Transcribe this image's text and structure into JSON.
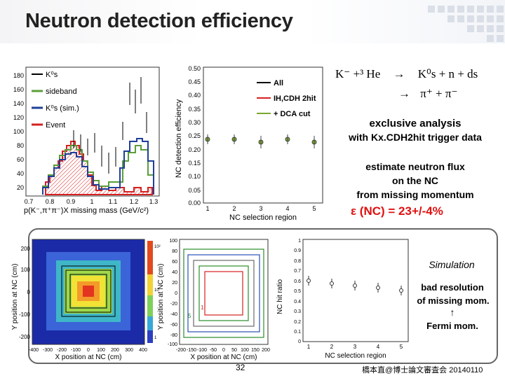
{
  "title": "Neutron detection efficiency",
  "reaction": {
    "line1_lhs": "K⁻ +³ He",
    "line1_arrow": "→",
    "line1_rhs": "K⁰s + n + ds",
    "line2_arrow": "→",
    "line2_rhs": "π⁺ + π⁻"
  },
  "analysis": {
    "line1": "exclusive analysis",
    "line2": "with Kx.CDH2hit trigger data",
    "line3": "estimate neutron flux",
    "line4": "on the NC",
    "line5": "from missing momentum",
    "result": "ε (NC) = 23+/-4%"
  },
  "hist_plot": {
    "xlabel": "p(K⁻,π⁺π⁻)X missing mass (GeV/c²)",
    "legend": [
      "K⁰s",
      "sideband",
      "K⁰s (sim.)",
      "Event"
    ],
    "yticks": [
      "180",
      "160",
      "140",
      "120",
      "100",
      "80",
      "60",
      "40",
      "20"
    ],
    "xticks": [
      "0.7",
      "0.8",
      "0.9",
      "1",
      "1.1",
      "1.2",
      "1.3"
    ],
    "colors": {
      "sideband": "#5a9e3a",
      "sim": "#1f3f99",
      "event": "#d62020",
      "ks": "#000000"
    }
  },
  "eff_plot": {
    "ylabel": "NC detection efficiency",
    "xlabel": "NC selection region",
    "legend": [
      "All",
      "IH,CDH 2hit",
      "+ DCA cut"
    ],
    "yticks": [
      "0.50",
      "0.45",
      "0.40",
      "0.35",
      "0.30",
      "0.25",
      "0.20",
      "0.15",
      "0.10",
      "0.05",
      "0.00"
    ],
    "xticks": [
      "1",
      "2",
      "3",
      "4",
      "5"
    ],
    "points": [
      0.22,
      0.22,
      0.21,
      0.22,
      0.21
    ]
  },
  "map_plot": {
    "ylabel": "Y position at NC (cm)",
    "xlabel": "X position at NC (cm)",
    "yticks": [
      "200",
      "100",
      "0",
      "-100",
      "-200"
    ],
    "xticks": [
      "-400",
      "-300",
      "-200",
      "-100",
      "0",
      "100",
      "200",
      "300",
      "400"
    ],
    "zticks": [
      "10²",
      "10",
      "1"
    ]
  },
  "region_plot": {
    "ylabel": "Y position at NC (cm)",
    "xlabel": "X position at NC (cm)",
    "yticks": [
      "100",
      "80",
      "60",
      "40",
      "20",
      "0",
      "-20",
      "-40",
      "-60",
      "-80",
      "-100"
    ],
    "xticks": [
      "-200",
      "-150",
      "-100",
      "-50",
      "0",
      "50",
      "100",
      "150",
      "200"
    ],
    "labels": [
      "1",
      "5"
    ]
  },
  "ratio_plot": {
    "ylabel": "NC hit ratio",
    "xlabel": "NC selection region",
    "yticks": [
      "1",
      "0.9",
      "0.8",
      "0.7",
      "0.6",
      "0.5",
      "0.4",
      "0.3",
      "0.2",
      "0.1",
      "0"
    ],
    "xticks": [
      "1",
      "2",
      "3",
      "4",
      "5"
    ],
    "points": [
      0.6,
      0.57,
      0.55,
      0.53,
      0.5
    ]
  },
  "sim_note": {
    "label": "Simulation",
    "line1": "bad resolution",
    "line2": "of missing mom.",
    "arrow": "↑",
    "line3": "Fermi mom."
  },
  "footer": {
    "page": "32",
    "credit": "橋本直@博士論文審査会 20140110"
  }
}
